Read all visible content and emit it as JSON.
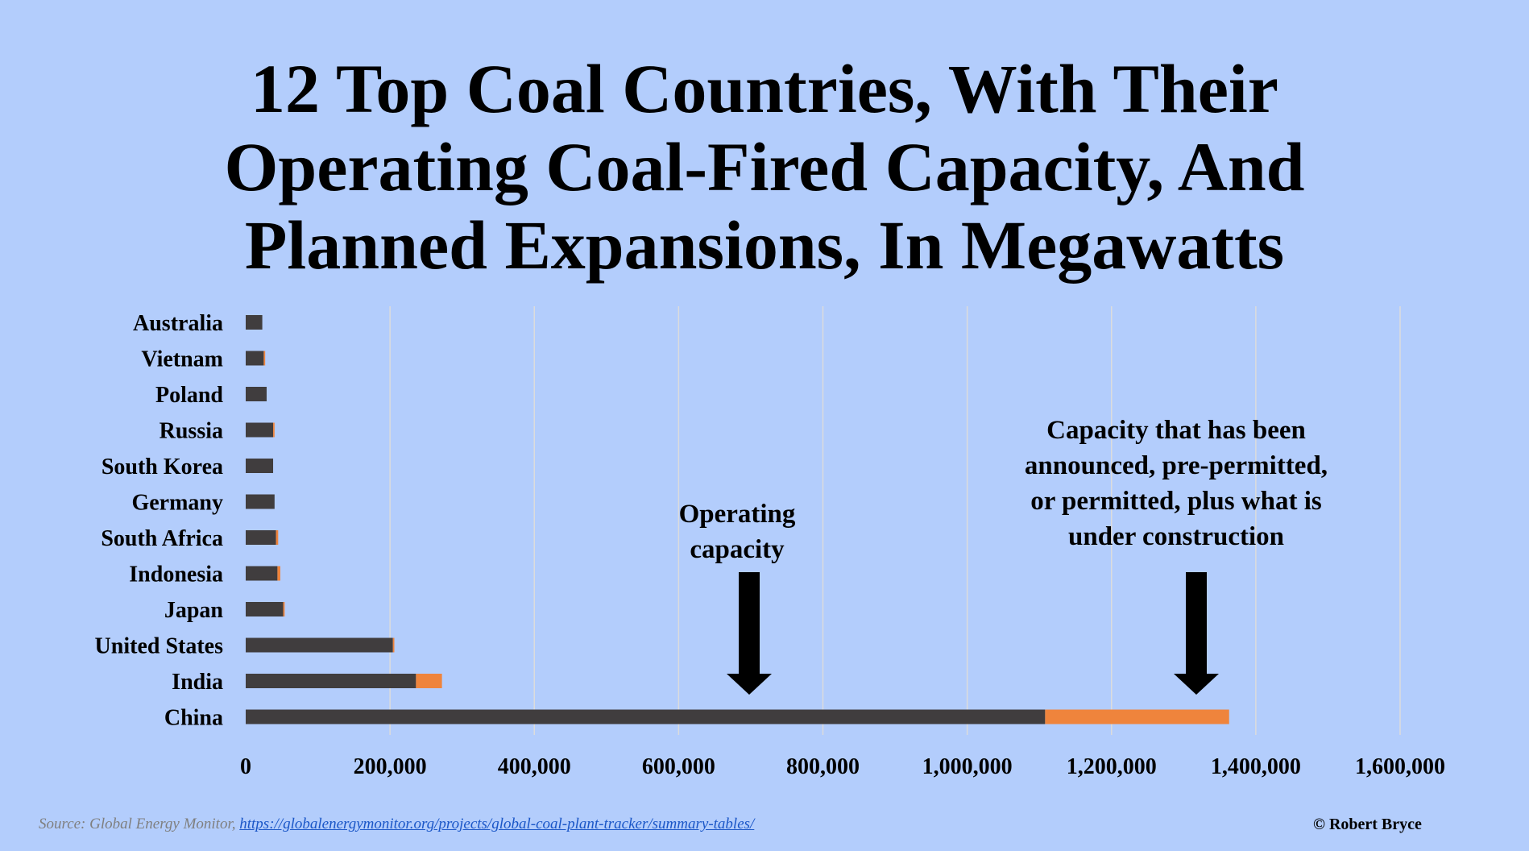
{
  "title_lines": [
    "12 Top Coal Countries, With Their",
    "Operating Coal-Fired Capacity, And",
    "Planned Expansions, In Megawatts"
  ],
  "annotations": {
    "operating": [
      "Operating",
      "capacity"
    ],
    "planned": [
      "Capacity that has been",
      "announced, pre-permitted,",
      "or permitted, plus what is",
      "under construction"
    ]
  },
  "footer": {
    "source_prefix": "Source: Global Energy Monitor, ",
    "source_url": "https://globalenergymonitor.org/projects/global-coal-plant-tracker/summary-tables/",
    "credit": "© Robert Bryce"
  },
  "colors": {
    "background": "#b3cdfc",
    "operating": "#403d3e",
    "planned": "#ef843c",
    "gridline": "#dcdcdc"
  },
  "chart_data": {
    "type": "bar",
    "orientation": "horizontal",
    "stacked": true,
    "categories": [
      "Australia",
      "Vietnam",
      "Poland",
      "Russia",
      "South Korea",
      "Germany",
      "South Africa",
      "Indonesia",
      "Japan",
      "United States",
      "India",
      "China"
    ],
    "series": [
      {
        "values": [
          23000,
          25000,
          29000,
          38000,
          38000,
          40000,
          42000,
          44000,
          52000,
          204000,
          236000,
          1108000
        ]
      },
      {
        "values": [
          0,
          2000,
          0,
          2000,
          0,
          0,
          3000,
          4000,
          2000,
          2000,
          36000,
          255000
        ]
      }
    ],
    "xlim": [
      0,
      1600000
    ],
    "xticks": [
      "0",
      "200,000",
      "400,000",
      "600,000",
      "800,000",
      "1,000,000",
      "1,200,000",
      "1,400,000",
      "1,600,000"
    ],
    "grid": true,
    "legend": "none"
  }
}
